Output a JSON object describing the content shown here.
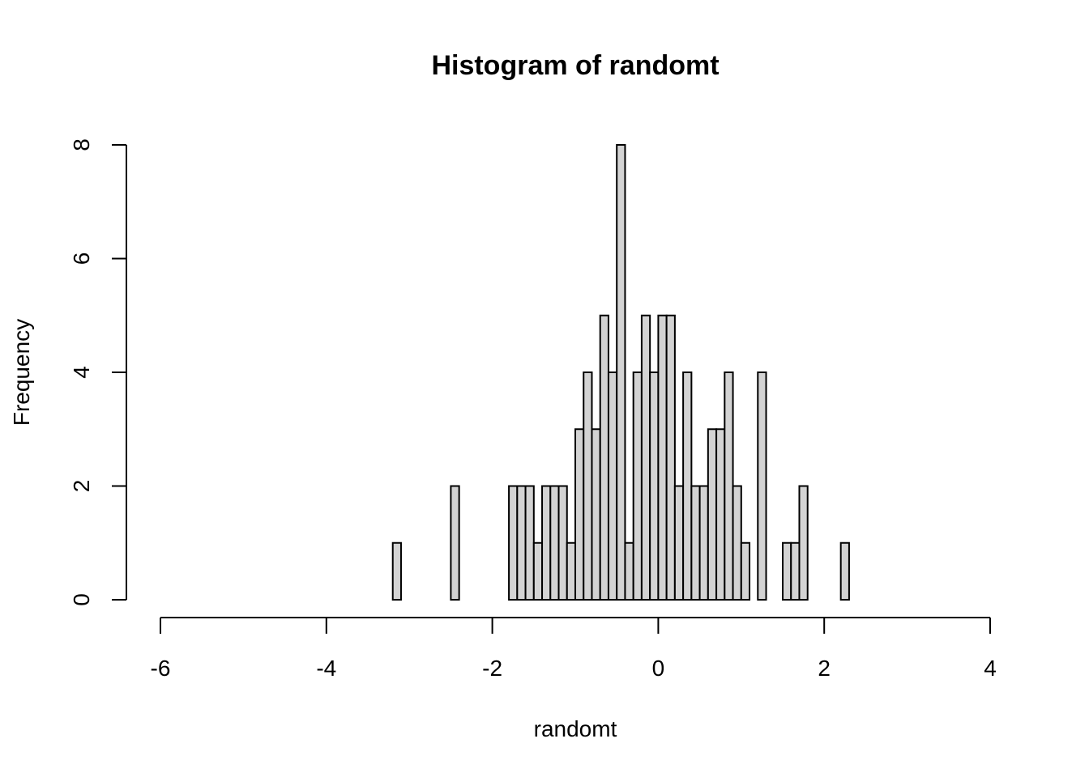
{
  "chart_data": {
    "type": "histogram",
    "title": "Histogram of randomt",
    "x_label": "randomt",
    "y_label": "Frequency",
    "bins": [
      -3.2,
      -3.1,
      -3,
      -2.9,
      -2.8,
      -2.7,
      -2.6,
      -2.5,
      -2.4,
      -2.3,
      -2.2,
      -2.1,
      -2,
      -1.9,
      -1.8,
      -1.7,
      -1.6,
      -1.5,
      -1.4,
      -1.3,
      -1.2,
      -1.1,
      -1,
      -0.9,
      -0.8,
      -0.7,
      -0.6,
      -0.5,
      -0.4,
      -0.3,
      -0.2,
      -0.1,
      0,
      0.1,
      0.2,
      0.3,
      0.4,
      0.5,
      0.6,
      0.7,
      0.8,
      0.9,
      1,
      1.1,
      1.2,
      1.3,
      1.4,
      1.5,
      1.6,
      1.7,
      1.8,
      1.9,
      2,
      2.1,
      2.2,
      2.3
    ],
    "values": [
      1,
      0,
      0,
      0,
      0,
      0,
      0,
      2,
      0,
      0,
      0,
      0,
      0,
      0,
      2,
      2,
      2,
      1,
      2,
      2,
      2,
      1,
      3,
      4,
      3,
      5,
      4,
      8,
      1,
      4,
      5,
      4,
      5,
      5,
      2,
      4,
      2,
      2,
      3,
      3,
      4,
      2,
      1,
      0,
      4,
      0,
      0,
      1,
      1,
      2,
      0,
      0,
      0,
      0,
      1
    ],
    "color": "#d3d3d3",
    "xlim": [
      -6,
      4
    ],
    "xticks": [
      -6,
      -4,
      -2,
      0,
      2,
      4
    ],
    "ylim": [
      0,
      8
    ],
    "yticks": [
      0,
      2,
      4,
      6,
      8
    ]
  }
}
